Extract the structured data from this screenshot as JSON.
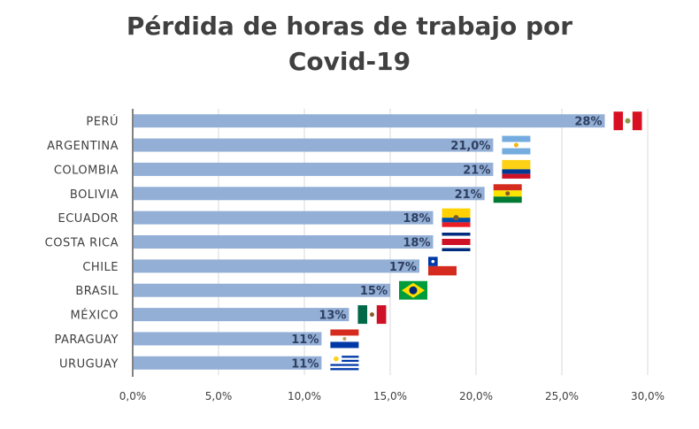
{
  "title_lines": [
    "Pérdida de horas de trabajo por",
    "Covid-19"
  ],
  "colors": {
    "bar": "#93afd6",
    "grid": "#d9d9d9",
    "axis": "#595959",
    "text": "#404040",
    "label": "#2f3f5f"
  },
  "chart_data": {
    "type": "bar",
    "orientation": "horizontal",
    "title": "Pérdida de horas de trabajo por Covid-19",
    "categories": [
      "PERÚ",
      "ARGENTINA",
      "COLOMBIA",
      "BOLIVIA",
      "ECUADOR",
      "COSTA RICA",
      "CHILE",
      "BRASIL",
      "MÉXICO",
      "PARAGUAY",
      "URUGUAY"
    ],
    "values": [
      27.5,
      21.0,
      21.0,
      20.5,
      17.5,
      17.5,
      16.7,
      15.0,
      12.6,
      11.0,
      11.0
    ],
    "data_labels": [
      "28%",
      "21,0%",
      "21%",
      "21%",
      "18%",
      "18%",
      "17%",
      "15%",
      "13%",
      "11%",
      "11%"
    ],
    "flags": [
      "peru-flag-icon",
      "argentina-flag-icon",
      "colombia-flag-icon",
      "bolivia-flag-icon",
      "ecuador-flag-icon",
      "costa-rica-flag-icon",
      "chile-flag-icon",
      "brazil-flag-icon",
      "mexico-flag-icon",
      "paraguay-flag-icon",
      "uruguay-flag-icon"
    ],
    "xlim": [
      0,
      30
    ],
    "x_ticks": [
      0,
      5,
      10,
      15,
      20,
      25,
      30
    ],
    "x_tick_labels": [
      "0,0%",
      "5,0%",
      "10,0%",
      "15,0%",
      "20,0%",
      "25,0%",
      "30,0%"
    ],
    "grid": true,
    "legend": false
  }
}
